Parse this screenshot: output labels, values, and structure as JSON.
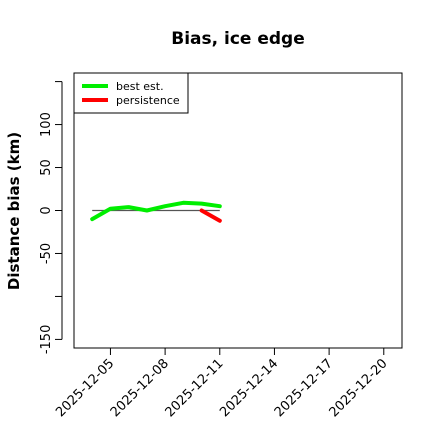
{
  "chart_data": {
    "type": "line",
    "title": "Bias, ice edge",
    "xlabel": "",
    "ylabel": "Distance bias (km)",
    "xlim": [
      "2025-12-03",
      "2025-12-21"
    ],
    "ylim": [
      -160,
      160
    ],
    "x_ticks": [
      "2025-12-05",
      "2025-12-08",
      "2025-12-11",
      "2025-12-14",
      "2025-12-17",
      "2025-12-20"
    ],
    "y_ticks": [
      -150,
      -100,
      -50,
      0,
      50,
      100,
      150
    ],
    "y_tick_labels": [
      "-150",
      "",
      "-50",
      "0",
      "50",
      "100",
      ""
    ],
    "reference_line": {
      "y": 0,
      "from": "2025-12-04",
      "to": "2025-12-11",
      "color": "#555555"
    },
    "legend_position": "top-left",
    "series": [
      {
        "name": "best est.",
        "color": "#00ee00",
        "x": [
          "2025-12-04",
          "2025-12-05",
          "2025-12-06",
          "2025-12-07",
          "2025-12-08",
          "2025-12-09",
          "2025-12-10",
          "2025-12-11"
        ],
        "y": [
          -10,
          2,
          4,
          0,
          5,
          9,
          8,
          5
        ]
      },
      {
        "name": "persistence",
        "color": "#ff0000",
        "x": [
          "2025-12-10",
          "2025-12-11"
        ],
        "y": [
          0,
          -12
        ]
      }
    ]
  }
}
